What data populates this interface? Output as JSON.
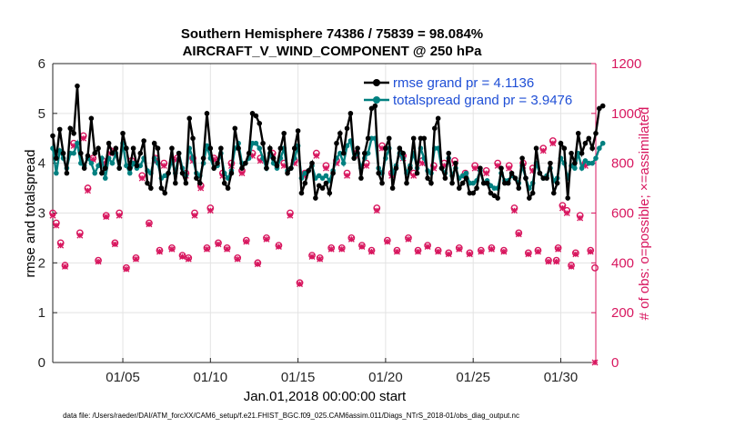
{
  "chart_data": {
    "type": "line",
    "title": [
      "Southern Hemisphere 74386 / 75839 = 98.084%",
      "AIRCRAFT_V_WIND_COMPONENT @ 250 hPa"
    ],
    "xlabel": "Jan.01,2018 00:00:00 start",
    "ylabel": "rmse and totalspread",
    "y2label": "# of obs: o=possible; ×=assimilated",
    "footnote": "data file: /Users/raeder/DAI/ATM_forcXX/CAM6_setup/f.e21.FHIST_BGC.f09_025.CAM6assim.011/Diags_NTrS_2018-01/obs_diag_output.nc",
    "xlim": [
      1,
      32
    ],
    "ylim": [
      0,
      6
    ],
    "y2lim": [
      0,
      1200
    ],
    "xticks": [
      5,
      10,
      15,
      20,
      25,
      30
    ],
    "xticklabels": [
      "01/05",
      "01/10",
      "01/15",
      "01/20",
      "01/25",
      "01/30"
    ],
    "yticks": [
      0,
      1,
      2,
      3,
      4,
      5,
      6
    ],
    "y2ticks": [
      0,
      200,
      400,
      600,
      800,
      1000,
      1200
    ],
    "grid": true,
    "legend_location": "top-right",
    "colors": {
      "rmse": "#000000",
      "spread": "#008080",
      "obs": "#d8175f"
    },
    "series": [
      {
        "name": "rmse grand pr = 4.1136",
        "axis": "left",
        "values": [
          4.55,
          4.1,
          4.68,
          4.2,
          3.8,
          4.7,
          4.6,
          5.55,
          4.2,
          3.9,
          4.15,
          4.9,
          4.2,
          4.3,
          3.8,
          3.9,
          4.4,
          4.2,
          4.3,
          3.9,
          4.6,
          4.3,
          3.9,
          4.3,
          3.95,
          4.2,
          4.45,
          3.6,
          3.5,
          4.4,
          4.3,
          3.5,
          3.4,
          3.8,
          4.3,
          3.6,
          4.2,
          3.8,
          3.6,
          4.9,
          4.5,
          3.7,
          3.6,
          4.1,
          5.0,
          4.3,
          3.9,
          4.0,
          4.3,
          3.6,
          3.5,
          3.8,
          4.7,
          4.3,
          3.9,
          4.0,
          4.2,
          5.0,
          4.95,
          4.8,
          4.4,
          3.9,
          4.3,
          4.1,
          3.95,
          4.3,
          4.6,
          3.8,
          3.9,
          4.3,
          4.65,
          3.4,
          3.6,
          3.85,
          4.0,
          3.3,
          3.55,
          3.5,
          3.6,
          3.4,
          3.8,
          4.4,
          4.6,
          4.2,
          4.7,
          5.0,
          4.1,
          4.3,
          3.7,
          4.2,
          4.5,
          5.1,
          5.15,
          3.8,
          3.6,
          4.3,
          4.5,
          3.5,
          3.9,
          4.3,
          4.2,
          3.6,
          3.9,
          4.5,
          3.8,
          4.5,
          4.5,
          3.7,
          3.6,
          4.7,
          4.9,
          3.9,
          3.7,
          4.2,
          3.6,
          4.0,
          3.5,
          3.6,
          3.7,
          3.4,
          3.4,
          3.5,
          3.9,
          3.6,
          3.6,
          3.4,
          3.35,
          3.3,
          3.9,
          3.6,
          3.6,
          3.8,
          3.7,
          3.5,
          4.1,
          3.7,
          3.3,
          3.4,
          4.3,
          3.8,
          3.7,
          3.7,
          4.0,
          3.4,
          3.6,
          4.4,
          4.3,
          3.3,
          4.2,
          4.0,
          4.6,
          4.2,
          4.4,
          4.5,
          4.3,
          4.6,
          5.1,
          5.15
        ],
        "x_start": 1,
        "x_step": 0.2
      },
      {
        "name": "totalspread grand pr = 3.9476",
        "axis": "left",
        "values": [
          4.3,
          3.8,
          4.25,
          4.1,
          3.9,
          4.2,
          4.2,
          4.4,
          4.0,
          3.95,
          4.1,
          4.0,
          3.8,
          3.95,
          4.1,
          3.7,
          4.1,
          4.0,
          4.2,
          3.9,
          4.4,
          3.95,
          3.8,
          4.0,
          3.9,
          3.95,
          4.1,
          3.85,
          3.8,
          4.1,
          4.0,
          3.7,
          3.75,
          3.8,
          4.05,
          3.8,
          4.2,
          3.9,
          3.75,
          4.3,
          4.1,
          3.8,
          3.75,
          4.0,
          4.35,
          4.1,
          3.9,
          3.95,
          4.2,
          3.8,
          3.7,
          3.85,
          4.3,
          4.4,
          4.0,
          4.0,
          4.1,
          4.4,
          4.4,
          4.3,
          4.1,
          3.9,
          4.2,
          4.0,
          3.9,
          4.1,
          4.3,
          3.85,
          3.9,
          4.1,
          4.35,
          3.7,
          3.8,
          3.85,
          3.95,
          3.7,
          3.75,
          3.7,
          3.75,
          3.65,
          3.85,
          4.1,
          4.2,
          4.0,
          4.35,
          4.45,
          4.1,
          4.2,
          3.9,
          4.1,
          4.2,
          4.5,
          4.5,
          3.9,
          3.8,
          4.1,
          4.3,
          3.8,
          3.95,
          4.2,
          4.1,
          3.8,
          3.95,
          4.2,
          3.9,
          4.3,
          4.1,
          3.85,
          3.8,
          4.3,
          4.3,
          3.9,
          3.8,
          4.1,
          3.75,
          3.9,
          3.7,
          3.75,
          3.8,
          3.6,
          3.6,
          3.65,
          3.85,
          3.6,
          3.65,
          3.55,
          3.5,
          3.5,
          3.8,
          3.65,
          3.65,
          3.75,
          3.7,
          3.6,
          3.95,
          3.7,
          3.5,
          3.6,
          4.0,
          3.8,
          3.7,
          3.75,
          3.9,
          3.65,
          3.7,
          4.1,
          4.0,
          3.7,
          3.95,
          3.9,
          4.2,
          3.9,
          4.05,
          4.0,
          4.0,
          4.1,
          4.3,
          4.4
        ],
        "x_start": 1,
        "x_step": 0.2
      }
    ],
    "obs_possible": {
      "name": "possible",
      "axis": "right",
      "marker": "o",
      "x": [
        1.0,
        1.2,
        1.45,
        1.7,
        2.2,
        2.55,
        2.75,
        3.0,
        3.3,
        3.6,
        3.85,
        4.05,
        4.3,
        4.55,
        4.8,
        5.2,
        5.5,
        5.75,
        6.1,
        6.5,
        6.85,
        7.1,
        7.35,
        7.8,
        8.1,
        8.4,
        8.6,
        8.75,
        9.0,
        9.1,
        9.45,
        9.8,
        10.0,
        10.2,
        10.45,
        10.7,
        10.95,
        11.2,
        11.55,
        11.8,
        12.05,
        12.4,
        12.7,
        12.85,
        13.2,
        13.55,
        13.9,
        14.2,
        14.55,
        14.8,
        15.1,
        15.4,
        15.8,
        16.05,
        16.25,
        16.6,
        16.9,
        17.2,
        17.5,
        17.8,
        18.05,
        18.35,
        18.65,
        18.9,
        19.2,
        19.5,
        19.8,
        20.1,
        20.35,
        20.65,
        21.0,
        21.3,
        21.6,
        21.85,
        22.1,
        22.4,
        22.75,
        23.0,
        23.35,
        23.6,
        23.95,
        24.2,
        24.55,
        24.8,
        25.1,
        25.45,
        25.75,
        26.05,
        26.4,
        26.75,
        27.05,
        27.35,
        27.6,
        27.85,
        28.15,
        28.4,
        28.7,
        29.0,
        29.3,
        29.55,
        29.75,
        29.85,
        30.1,
        30.35,
        30.6,
        30.85,
        31.1,
        31.4,
        31.7,
        31.95
      ],
      "values": [
        600,
        560,
        480,
        390,
        880,
        520,
        910,
        700,
        820,
        410,
        810,
        590,
        850,
        480,
        600,
        380,
        810,
        420,
        750,
        560,
        820,
        450,
        800,
        460,
        820,
        430,
        760,
        420,
        820,
        600,
        710,
        460,
        620,
        820,
        480,
        760,
        460,
        800,
        420,
        770,
        490,
        840,
        400,
        820,
        500,
        840,
        470,
        800,
        600,
        810,
        320,
        760,
        430,
        840,
        420,
        790,
        460,
        810,
        460,
        760,
        500,
        840,
        470,
        800,
        450,
        620,
        870,
        490,
        760,
        450,
        830,
        500,
        760,
        450,
        810,
        470,
        790,
        450,
        800,
        440,
        810,
        460,
        760,
        440,
        790,
        450,
        770,
        460,
        800,
        450,
        790,
        620,
        520,
        800,
        440,
        780,
        450,
        860,
        410,
        890,
        410,
        460,
        630,
        610,
        390,
        440,
        590,
        800,
        450,
        380
      ],
      "note": "approximate, read from figure"
    },
    "obs_assimilated": {
      "name": "assimilated",
      "axis": "right",
      "marker": "x",
      "x": [
        1.0,
        1.2,
        1.45,
        1.7,
        2.2,
        2.55,
        2.75,
        3.0,
        3.3,
        3.6,
        3.85,
        4.05,
        4.3,
        4.55,
        4.8,
        5.2,
        5.5,
        5.75,
        6.1,
        6.5,
        6.85,
        7.1,
        7.35,
        7.8,
        8.1,
        8.4,
        8.6,
        8.75,
        9.0,
        9.1,
        9.45,
        9.8,
        10.0,
        10.2,
        10.45,
        10.7,
        10.95,
        11.2,
        11.55,
        11.8,
        12.05,
        12.4,
        12.7,
        12.85,
        13.2,
        13.55,
        13.9,
        14.2,
        14.55,
        14.8,
        15.1,
        15.4,
        15.8,
        16.05,
        16.25,
        16.6,
        16.9,
        17.2,
        17.5,
        17.8,
        18.05,
        18.35,
        18.65,
        18.9,
        19.2,
        19.5,
        19.8,
        20.1,
        20.35,
        20.65,
        21.0,
        21.3,
        21.6,
        21.85,
        22.1,
        22.4,
        22.75,
        23.0,
        23.35,
        23.6,
        23.95,
        24.2,
        24.55,
        24.8,
        25.1,
        25.45,
        25.75,
        26.05,
        26.4,
        26.75,
        27.05,
        27.35,
        27.6,
        27.85,
        28.15,
        28.4,
        28.7,
        29.0,
        29.3,
        29.55,
        29.75,
        29.85,
        30.1,
        30.35,
        30.6,
        30.85,
        31.1,
        31.4,
        31.7,
        31.95
      ],
      "values": [
        590,
        550,
        470,
        385,
        870,
        510,
        900,
        690,
        815,
        405,
        800,
        585,
        840,
        475,
        590,
        375,
        800,
        415,
        740,
        555,
        810,
        445,
        790,
        455,
        815,
        425,
        750,
        415,
        810,
        590,
        700,
        455,
        610,
        815,
        475,
        750,
        455,
        790,
        415,
        760,
        485,
        830,
        395,
        810,
        495,
        830,
        465,
        790,
        590,
        800,
        315,
        750,
        425,
        830,
        415,
        780,
        455,
        800,
        455,
        750,
        495,
        830,
        465,
        790,
        445,
        610,
        860,
        485,
        750,
        445,
        820,
        495,
        750,
        445,
        800,
        465,
        780,
        445,
        790,
        435,
        800,
        455,
        750,
        435,
        780,
        445,
        760,
        455,
        790,
        445,
        780,
        610,
        515,
        790,
        435,
        770,
        445,
        850,
        405,
        880,
        405,
        455,
        620,
        600,
        385,
        435,
        580,
        790,
        445,
        0
      ],
      "note": "approximate, read from figure"
    }
  }
}
